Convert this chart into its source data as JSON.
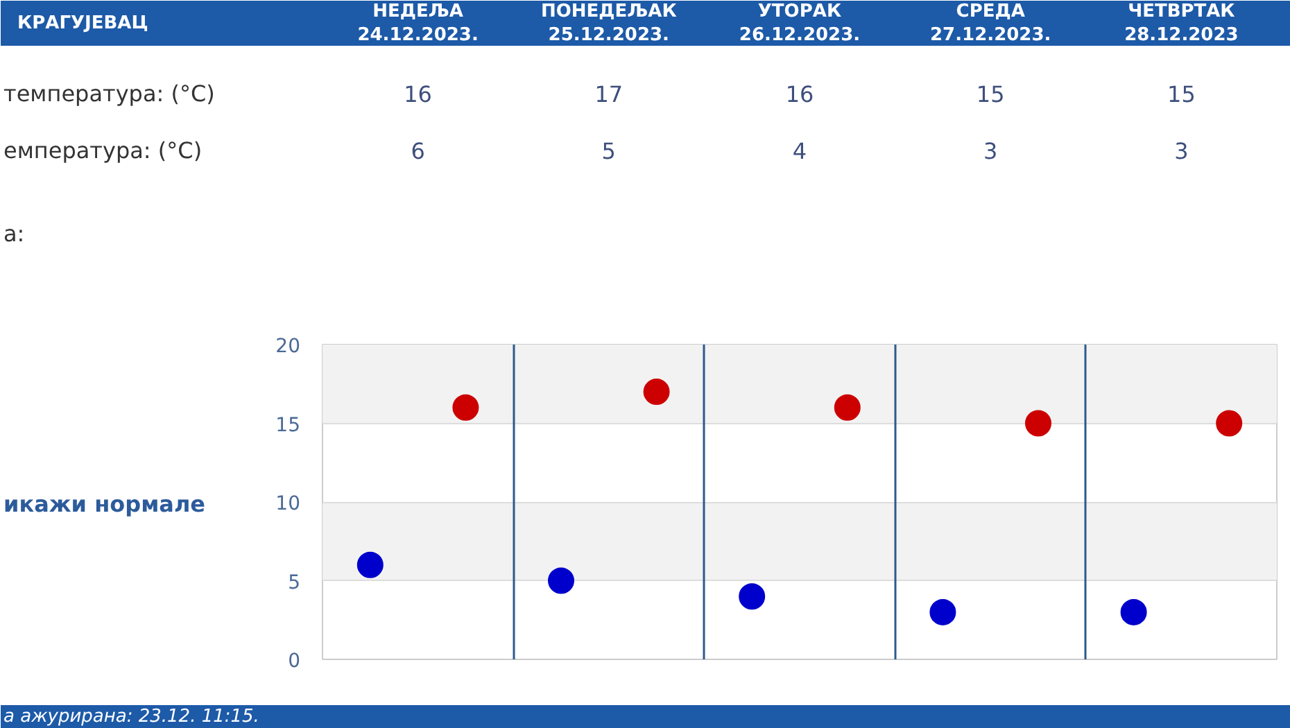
{
  "chart_data": {
    "type": "scatter",
    "title": "КРАГУЈЕВАЦ",
    "categories": [
      null,
      null,
      null,
      null,
      null
    ],
    "series": [
      {
        "color": "#cc0000",
        "values": [
          16,
          17,
          16,
          15,
          15
        ]
      },
      {
        "color": "#0000cc",
        "values": [
          6,
          5,
          4,
          3,
          3
        ]
      }
    ],
    "ylim": [
      0,
      20
    ],
    "yticks": [
      0,
      5,
      10,
      15,
      20
    ],
    "grid": true,
    "marker": "circle",
    "data_labels": true,
    "annotations": [
      "НЕДЕЉА\n24.12.2023.",
      "ПОНЕДЕЉАК\n25.12.2023.",
      "УТОРАК\n26.12.2023.",
      "СРЕДА\n27.12.2023.",
      "ЧЕТВРТАК\n28.12.2023",
      "температура: (°C)",
      "емпература: (°C)",
      "а:",
      "икажи нормале",
      "а ажурирана: 23.12. 11:15."
    ]
  }
}
